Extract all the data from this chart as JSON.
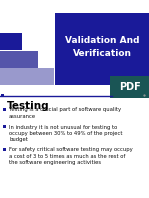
{
  "title_text": "Validation And\nVerification",
  "title_bg_color": "#1a1a99",
  "title_text_color": "#ffffff",
  "slide_bg_color": "#ffffff",
  "section_title": "Testing",
  "bullet_points": [
    "Testing is a crucial part of software quality\nassurance",
    "In industry it is not unusual for testing to\noccupy between 30% to 49% of the project\nbudget",
    "For safety critical software testing may occupy\na cost of 3 to 5 times as much as the rest of\nthe software engineering activities"
  ],
  "bullet_color": "#1a1a99",
  "text_color": "#111111",
  "section_title_color": "#000000",
  "deco_colors": [
    "#1a1a99",
    "#5555aa",
    "#9999cc"
  ],
  "header_line_color": "#1a1a99",
  "pdf_bg_color": "#1a5555"
}
